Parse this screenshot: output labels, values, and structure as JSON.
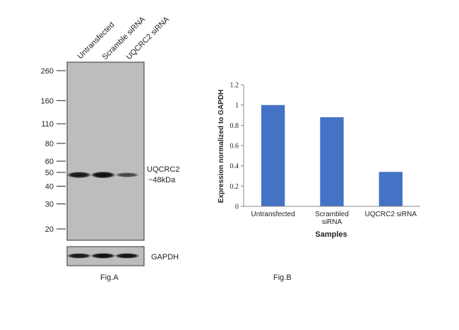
{
  "figure_a": {
    "caption": "Fig.A",
    "lanes": [
      "Untransfected",
      "Scramble siRNA",
      "UQCRC2 siRNA"
    ],
    "markers": [
      "260",
      "160",
      "110",
      "80",
      "60",
      "50",
      "40",
      "30",
      "20"
    ],
    "marker_kda": [
      260,
      160,
      110,
      80,
      60,
      50,
      40,
      30,
      20
    ],
    "target_label": "UQCRC2",
    "target_size": "~48kDa",
    "loading_control": "GAPDH",
    "band_intensity": [
      0.9,
      1.0,
      0.5
    ],
    "gapdh_intensity": [
      0.9,
      1.0,
      0.95
    ]
  },
  "figure_b": {
    "caption": "Fig.B"
  },
  "chart_data": {
    "type": "bar",
    "categories": [
      "Untransfected",
      "Scrambled siRNA",
      "UQCRC2 siRNA"
    ],
    "category_lines": [
      [
        "Untransfected"
      ],
      [
        "Scrambled",
        "siRNA"
      ],
      [
        "UQCRC2 siRNA"
      ]
    ],
    "values": [
      1.0,
      0.88,
      0.34
    ],
    "xlabel": "Samples",
    "ylabel": "Expression normalized to GAPDH",
    "ylim": [
      0,
      1.2
    ],
    "yticks": [
      "0",
      "0.2",
      "0.4",
      "0.6",
      "0.8",
      "1",
      "1.2"
    ],
    "ytick_values": [
      0,
      0.2,
      0.4,
      0.6,
      0.8,
      1.0,
      1.2
    ],
    "bar_color": "#4472c4",
    "grid": false
  }
}
